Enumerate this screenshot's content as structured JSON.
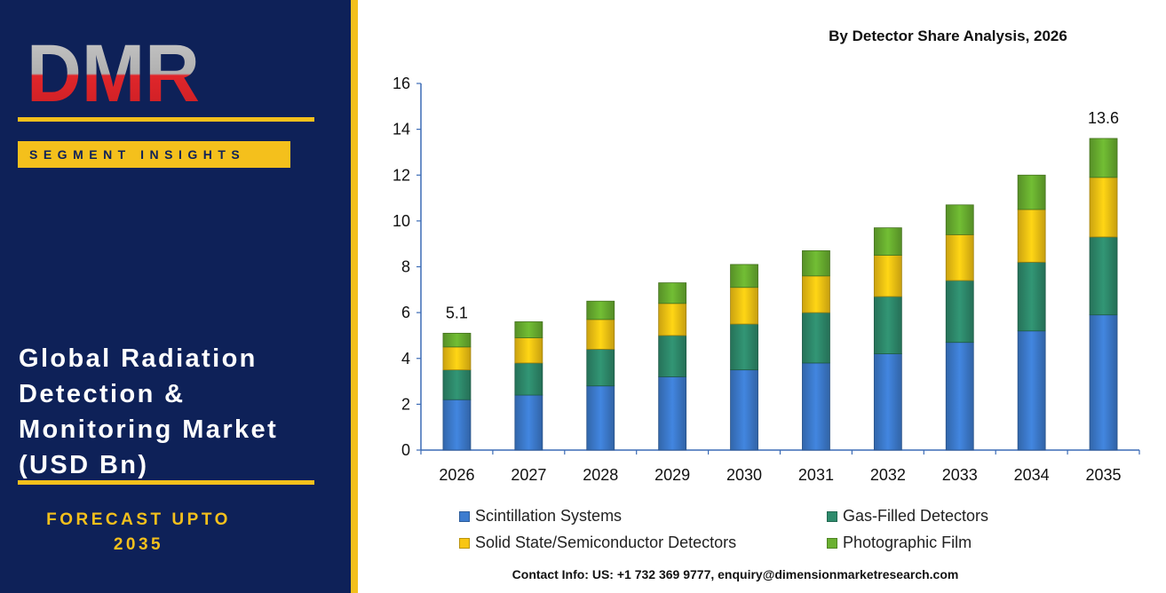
{
  "brand": {
    "logo_letters": "DMR",
    "colors": {
      "navy": "#0e2158",
      "gold": "#f4c01c",
      "logo_red": "#e0262b",
      "logo_gray": "#b9b9b9"
    }
  },
  "panel": {
    "badge": "SEGMENT INSIGHTS",
    "title_lines": [
      "Global Radiation",
      "Detection &",
      "Monitoring Market",
      "(USD Bn)"
    ],
    "forecast_lines": [
      "FORECAST UPTO",
      "2035"
    ]
  },
  "contact": "Contact Info: US: +1 732 369 9777, enquiry@dimensionmarketresearch.com",
  "chart_data": {
    "type": "bar",
    "stacked": true,
    "title": "By Detector Share Analysis, 2026",
    "xlabel": "",
    "ylabel": "",
    "ylim": [
      0,
      16
    ],
    "yticks": [
      0,
      2,
      4,
      6,
      8,
      10,
      12,
      14,
      16
    ],
    "grid": false,
    "legend_position": "bottom",
    "categories": [
      "2026",
      "2027",
      "2028",
      "2029",
      "2030",
      "2031",
      "2032",
      "2033",
      "2034",
      "2035"
    ],
    "series": [
      {
        "name": "Scintillation Systems",
        "color": "#3d7ccf",
        "values": [
          2.2,
          2.4,
          2.8,
          3.2,
          3.5,
          3.8,
          4.2,
          4.7,
          5.2,
          5.9
        ]
      },
      {
        "name": "Gas-Filled Detectors",
        "color": "#2e8b6c",
        "values": [
          1.3,
          1.4,
          1.6,
          1.8,
          2.0,
          2.2,
          2.5,
          2.7,
          3.0,
          3.4
        ]
      },
      {
        "name": "Solid State/Semiconductor Detectors",
        "color": "#f8c613",
        "values": [
          1.0,
          1.1,
          1.3,
          1.4,
          1.6,
          1.6,
          1.8,
          2.0,
          2.3,
          2.6
        ]
      },
      {
        "name": "Photographic Film",
        "color": "#6ab030",
        "values": [
          0.6,
          0.7,
          0.8,
          0.9,
          1.0,
          1.1,
          1.2,
          1.3,
          1.5,
          1.7
        ]
      }
    ],
    "total_labels": {
      "2026": "5.1",
      "2035": "13.6"
    }
  }
}
